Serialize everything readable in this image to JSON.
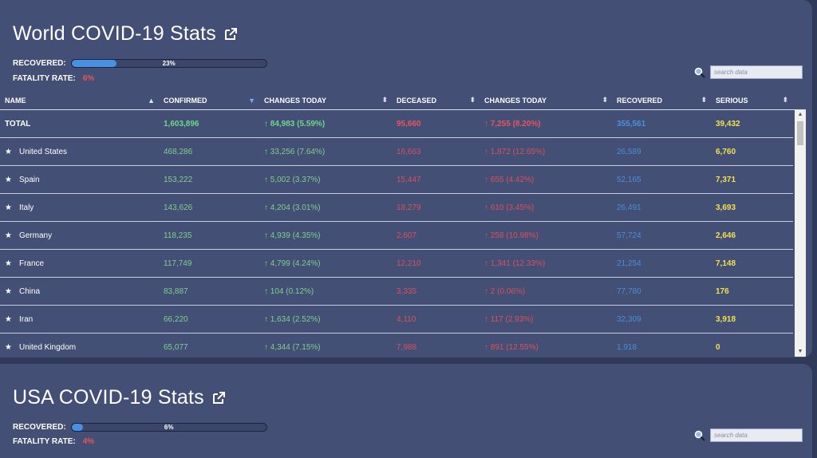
{
  "world": {
    "title": "World COVID-19 Stats",
    "recovered_label": "RECOVERED:",
    "recovered_pct": "23%",
    "recovered_fraction": 0.23,
    "fatality_label": "FATALITY RATE:",
    "fatality_value": "6%",
    "search_placeholder": "search data",
    "columns": [
      "NAME",
      "CONFIRMED",
      "CHANGES TODAY",
      "DECEASED",
      "CHANGES TODAY",
      "RECOVERED",
      "SERIOUS"
    ],
    "total": {
      "name": "TOTAL",
      "confirmed": "1,603,896",
      "changes_today": "↑ 84,983 (5.59%)",
      "deceased": "95,660",
      "deceased_changes": "↑ 7,255 (8.20%)",
      "recovered": "355,561",
      "serious": "39,432"
    },
    "rows": [
      {
        "name": "United States",
        "confirmed": "468,286",
        "changes_today": "↑ 33,256 (7.64%)",
        "deceased": "16,663",
        "deceased_changes": "↑ 1,872 (12.65%)",
        "recovered": "26,589",
        "serious": "6,760"
      },
      {
        "name": "Spain",
        "confirmed": "153,222",
        "changes_today": "↑ 5,002 (3.37%)",
        "deceased": "15,447",
        "deceased_changes": "↑ 655 (4.42%)",
        "recovered": "52,165",
        "serious": "7,371"
      },
      {
        "name": "Italy",
        "confirmed": "143,626",
        "changes_today": "↑ 4,204 (3.01%)",
        "deceased": "18,279",
        "deceased_changes": "↑ 610 (3.45%)",
        "recovered": "26,491",
        "serious": "3,693"
      },
      {
        "name": "Germany",
        "confirmed": "118,235",
        "changes_today": "↑ 4,939 (4.35%)",
        "deceased": "2,607",
        "deceased_changes": "↑ 258 (10.98%)",
        "recovered": "57,724",
        "serious": "2,646"
      },
      {
        "name": "France",
        "confirmed": "117,749",
        "changes_today": "↑ 4,799 (4.24%)",
        "deceased": "12,210",
        "deceased_changes": "↑ 1,341 (12.33%)",
        "recovered": "21,254",
        "serious": "7,148"
      },
      {
        "name": "China",
        "confirmed": "83,887",
        "changes_today": "↑ 104 (0.12%)",
        "deceased": "3,335",
        "deceased_changes": "↑ 2 (0.06%)",
        "recovered": "77,780",
        "serious": "176"
      },
      {
        "name": "Iran",
        "confirmed": "66,220",
        "changes_today": "↑ 1,634 (2.52%)",
        "deceased": "4,110",
        "deceased_changes": "↑ 117 (2.93%)",
        "recovered": "32,309",
        "serious": "3,918"
      },
      {
        "name": "United Kingdom",
        "confirmed": "65,077",
        "changes_today": "↑ 4,344 (7.15%)",
        "deceased": "7,988",
        "deceased_changes": "↑ 891 (12.55%)",
        "recovered": "1,918",
        "serious": "0"
      }
    ]
  },
  "usa": {
    "title": "USA COVID-19 Stats",
    "recovered_label": "RECOVERED:",
    "recovered_pct": "6%",
    "recovered_fraction": 0.06,
    "fatality_label": "FATALITY RATE:",
    "fatality_value": "4%",
    "search_placeholder": "search data"
  },
  "icons": {
    "external_link": "external-link-icon",
    "search": "search-icon",
    "star": "star-icon",
    "sort": "sort-icon"
  },
  "colors": {
    "background": "#2f3a5a",
    "panel": "#434f74",
    "green": "#6fd58a",
    "red": "#e8545e",
    "blue": "#4a90e2",
    "yellow": "#f4e04d"
  }
}
